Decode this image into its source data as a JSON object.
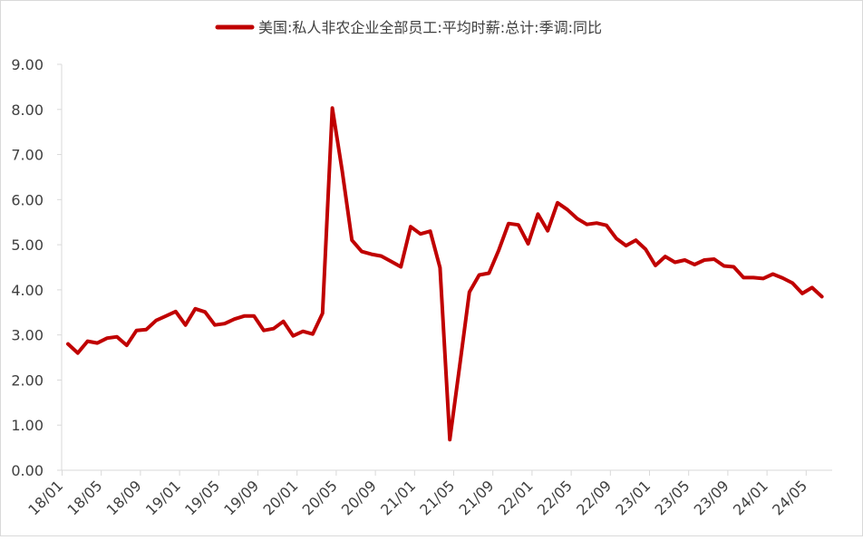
{
  "chart_data": {
    "type": "line",
    "title": "",
    "xlabel": "",
    "ylabel": "",
    "legend_position": "top-center",
    "grid": false,
    "line_color": "#C00000",
    "ylim": [
      0,
      9
    ],
    "y_ticks": [
      "0.00",
      "1.00",
      "2.00",
      "3.00",
      "4.00",
      "5.00",
      "6.00",
      "7.00",
      "8.00",
      "9.00"
    ],
    "x_tick_labels": [
      "18/01",
      "18/05",
      "18/09",
      "19/01",
      "19/05",
      "19/09",
      "20/01",
      "20/05",
      "20/09",
      "21/01",
      "21/05",
      "21/09",
      "22/01",
      "22/05",
      "22/09",
      "23/01",
      "23/05",
      "23/09",
      "24/01",
      "24/05"
    ],
    "series": [
      {
        "name": "美国:私人非农企业全部员工:平均时薪:总计:季调:同比",
        "x": [
          "18/01",
          "18/02",
          "18/03",
          "18/04",
          "18/05",
          "18/06",
          "18/07",
          "18/08",
          "18/09",
          "18/10",
          "18/11",
          "18/12",
          "19/01",
          "19/02",
          "19/03",
          "19/04",
          "19/05",
          "19/06",
          "19/07",
          "19/08",
          "19/09",
          "19/10",
          "19/11",
          "19/12",
          "20/01",
          "20/02",
          "20/03",
          "20/04",
          "20/05",
          "20/06",
          "20/07",
          "20/08",
          "20/09",
          "20/10",
          "20/11",
          "20/12",
          "21/01",
          "21/02",
          "21/03",
          "21/04",
          "21/05",
          "21/06",
          "21/07",
          "21/08",
          "21/09",
          "21/10",
          "21/11",
          "21/12",
          "22/01",
          "22/02",
          "22/03",
          "22/04",
          "22/05",
          "22/06",
          "22/07",
          "22/08",
          "22/09",
          "22/10",
          "22/11",
          "22/12",
          "23/01",
          "23/02",
          "23/03",
          "23/04",
          "23/05",
          "23/06",
          "23/07",
          "23/08",
          "23/09",
          "23/10",
          "23/11",
          "23/12",
          "24/01",
          "24/02",
          "24/03",
          "24/04",
          "24/05",
          "24/06"
        ],
        "values": [
          2.8,
          2.6,
          2.86,
          2.82,
          2.93,
          2.96,
          2.77,
          3.1,
          3.12,
          3.32,
          3.42,
          3.52,
          3.22,
          3.58,
          3.51,
          3.22,
          3.25,
          3.35,
          3.42,
          3.42,
          3.1,
          3.14,
          3.3,
          2.98,
          3.08,
          3.02,
          3.48,
          8.03,
          6.65,
          5.1,
          4.85,
          4.79,
          4.75,
          4.63,
          4.51,
          5.4,
          5.24,
          5.3,
          4.49,
          0.68,
          2.3,
          3.95,
          4.33,
          4.37,
          4.88,
          5.47,
          5.44,
          5.02,
          5.68,
          5.31,
          5.93,
          5.78,
          5.58,
          5.45,
          5.48,
          5.43,
          5.14,
          4.98,
          5.1,
          4.9,
          4.54,
          4.74,
          4.61,
          4.66,
          4.56,
          4.66,
          4.68,
          4.53,
          4.51,
          4.27,
          4.27,
          4.25,
          4.35,
          4.26,
          4.15,
          3.92,
          4.05,
          3.85
        ]
      }
    ]
  }
}
